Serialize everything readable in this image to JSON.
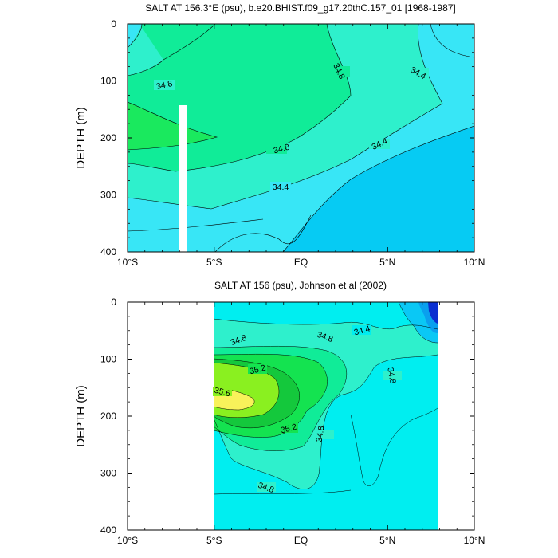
{
  "chart_data": [
    {
      "type": "contour",
      "title": "SALT AT 156.3°E (psu), b.e20.BHIST.f09_g17.20thC.157_01 [1968-1987]",
      "ylabel": "DEPTH (m)",
      "xlabel": "",
      "x_ticks": [
        "10°S",
        "5°S",
        "EQ",
        "5°N",
        "10°N"
      ],
      "x_tick_values": [
        -10,
        -5,
        0,
        5,
        10
      ],
      "y_ticks": [
        0,
        100,
        200,
        300,
        400
      ],
      "xlim": [
        -10,
        10
      ],
      "ylim": [
        400,
        0
      ],
      "y_reversed": true,
      "contour_levels": [
        34.0,
        34.2,
        34.4,
        34.6,
        34.8,
        35.0
      ],
      "contour_labels": [
        {
          "text": "34.8",
          "x": -7.4,
          "y": 107
        },
        {
          "text": "34.8",
          "x": 2.5,
          "y": 88
        },
        {
          "text": "34.8",
          "x": -0.9,
          "y": 218
        },
        {
          "text": "34.4",
          "x": 6.8,
          "y": 87
        },
        {
          "text": "34.4",
          "x": 4.5,
          "y": 210
        },
        {
          "text": "34.4",
          "x": -1.1,
          "y": 283
        }
      ],
      "missing_region": {
        "x": [
          -7.1,
          -6.6
        ],
        "y": [
          147,
          400
        ]
      },
      "colors": {
        "deep": "#06cbf3",
        "low": "#38e6f6",
        "mid": "#2ef0cc",
        "core": "#10ec98",
        "max": "#1ae95e"
      }
    },
    {
      "type": "contour",
      "title": "SALT AT 156 (psu), Johnson et al (2002)",
      "ylabel": "DEPTH (m)",
      "xlabel": "",
      "x_ticks": [
        "10°S",
        "5°S",
        "EQ",
        "5°N",
        "10°N"
      ],
      "x_tick_values": [
        -10,
        -5,
        0,
        5,
        10
      ],
      "y_ticks": [
        0,
        100,
        200,
        300,
        400
      ],
      "xlim": [
        -10,
        10
      ],
      "ylim": [
        400,
        0
      ],
      "y_reversed": true,
      "data_extent": {
        "x": [
          -5,
          8
        ],
        "y": [
          0,
          400
        ]
      },
      "contour_levels": [
        34.4,
        34.6,
        34.8,
        35.0,
        35.2,
        35.4,
        35.6
      ],
      "contour_labels": [
        {
          "text": "34.8",
          "x": -3.5,
          "y": 70
        },
        {
          "text": "34.8",
          "x": 2.0,
          "y": 65
        },
        {
          "text": "34.4",
          "x": 3.5,
          "y": 52
        },
        {
          "text": "35.2",
          "x": -0.9,
          "y": 117
        },
        {
          "text": "34.8",
          "x": 5.3,
          "y": 135
        },
        {
          "text": "35.6",
          "x": -4.4,
          "y": 160
        },
        {
          "text": "35.2",
          "x": -0.6,
          "y": 222
        },
        {
          "text": "34.8",
          "x": 1.3,
          "y": 232
        },
        {
          "text": "34.8",
          "x": -1.2,
          "y": 325
        }
      ],
      "colors": {
        "fresh_deep": "#0a2fd0",
        "fresh": "#0aa0ee",
        "fresher": "#0ac8f5",
        "low": "#00eef0",
        "mid": "#2ef0cc",
        "core": "#10ec98",
        "high": "#14e350",
        "higher": "#8af020",
        "max": "#f8f25a"
      }
    }
  ]
}
